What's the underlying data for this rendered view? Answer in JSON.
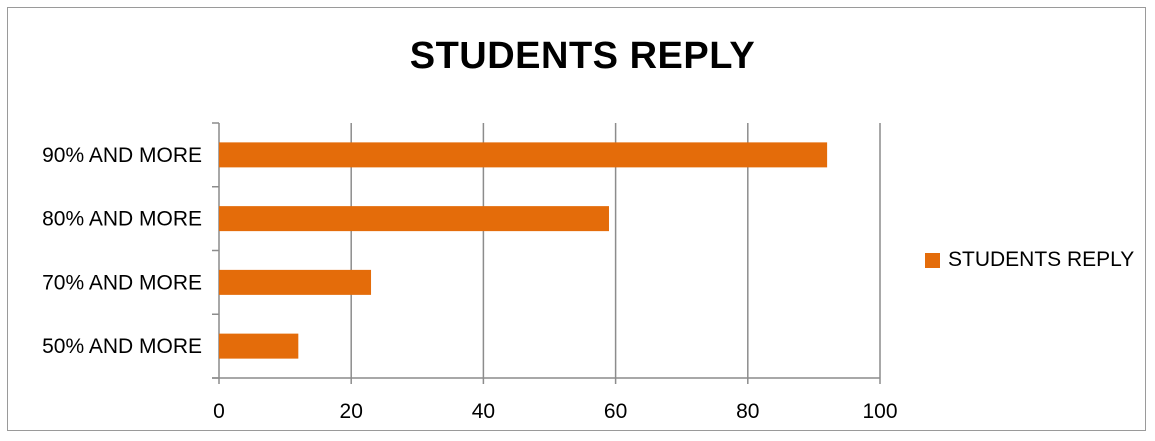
{
  "colors": {
    "bar": "#E46C0A",
    "grid": "#8c8c8c",
    "axis": "#8c8c8c"
  },
  "chart_data": {
    "type": "bar",
    "orientation": "horizontal",
    "title": "STUDENTS REPLY",
    "xlabel": "",
    "ylabel": "",
    "categories": [
      "90% AND MORE",
      "80% AND MORE",
      "70% AND MORE",
      "50% AND MORE"
    ],
    "series": [
      {
        "name": "STUDENTS REPLY",
        "values": [
          92,
          59,
          23,
          12
        ]
      }
    ],
    "xlim": [
      0,
      100
    ],
    "x_ticks": [
      0,
      20,
      40,
      60,
      80,
      100
    ],
    "grid": "vertical",
    "legend": "right"
  }
}
